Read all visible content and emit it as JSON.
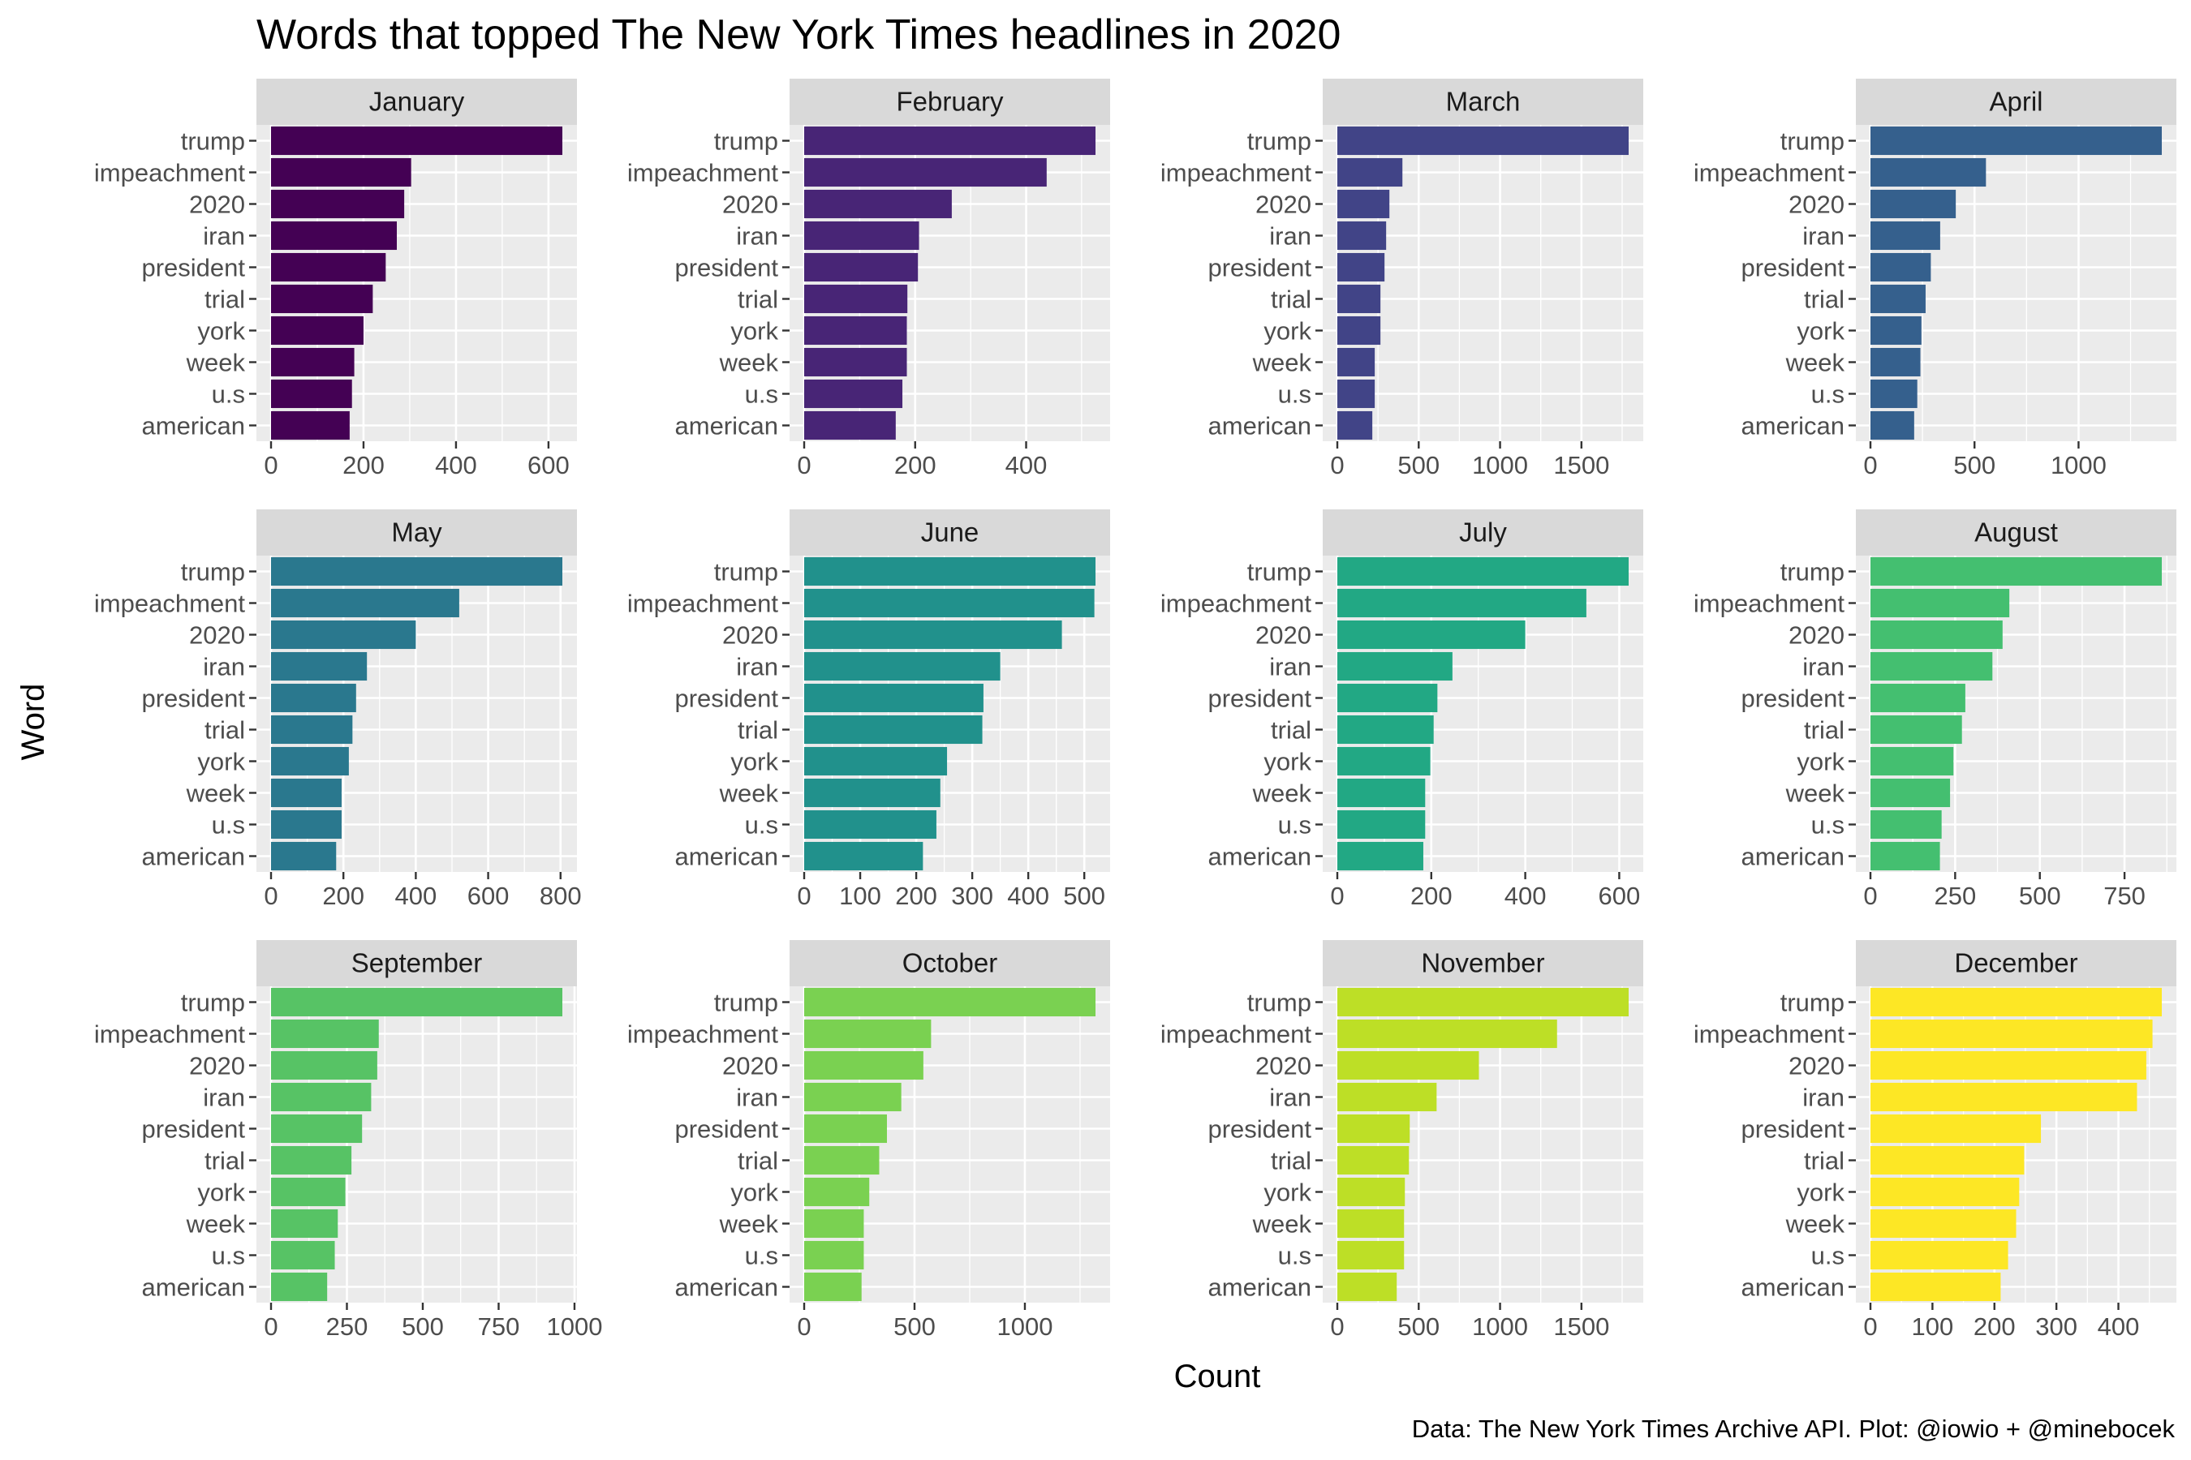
{
  "chart_data": {
    "type": "bar",
    "orientation": "horizontal",
    "title": "Words that topped The New York Times headlines in 2020",
    "xlabel": "Count",
    "ylabel": "Word",
    "caption": "Data: The New York Times Archive API. Plot: @iowio + @minebocek",
    "grid": true,
    "legend": "none",
    "categories": [
      "trump",
      "impeachment",
      "2020",
      "iran",
      "president",
      "trial",
      "york",
      "week",
      "u.s",
      "american"
    ],
    "facets": [
      {
        "name": "January",
        "color": "#440154",
        "xlim": [
          0,
          630
        ],
        "ticks": [
          0,
          200,
          400,
          600
        ],
        "tick_labels": [
          "0",
          "200",
          "400",
          "600"
        ],
        "values": [
          630,
          303,
          288,
          272,
          248,
          220,
          200,
          180,
          175,
          170
        ]
      },
      {
        "name": "February",
        "color": "#482576",
        "xlim": [
          0,
          525
        ],
        "ticks": [
          0,
          200,
          400
        ],
        "tick_labels": [
          "0",
          "200",
          "400"
        ],
        "values": [
          525,
          437,
          266,
          207,
          205,
          186,
          185,
          185,
          177,
          165
        ]
      },
      {
        "name": "March",
        "color": "#414487",
        "xlim": [
          0,
          1790
        ],
        "ticks": [
          0,
          500,
          1000,
          1500
        ],
        "tick_labels": [
          "0",
          "500",
          "1000",
          "1500"
        ],
        "values": [
          1790,
          400,
          320,
          300,
          290,
          265,
          265,
          230,
          230,
          215
        ]
      },
      {
        "name": "April",
        "color": "#35608d",
        "xlim": [
          0,
          1400
        ],
        "ticks": [
          0,
          500,
          1000
        ],
        "tick_labels": [
          "0",
          "500",
          "1000"
        ],
        "values": [
          1400,
          555,
          410,
          335,
          290,
          265,
          245,
          240,
          225,
          210
        ]
      },
      {
        "name": "May",
        "color": "#2a788e",
        "xlim": [
          0,
          805
        ],
        "ticks": [
          0,
          200,
          400,
          600,
          800
        ],
        "tick_labels": [
          "0",
          "200",
          "400",
          "600",
          "800"
        ],
        "values": [
          805,
          520,
          400,
          265,
          235,
          225,
          215,
          195,
          195,
          180
        ]
      },
      {
        "name": "June",
        "color": "#21918c",
        "xlim": [
          0,
          520
        ],
        "ticks": [
          0,
          100,
          200,
          300,
          400,
          500
        ],
        "tick_labels": [
          "0",
          "100",
          "200",
          "300",
          "400",
          "500"
        ],
        "values": [
          520,
          518,
          460,
          350,
          320,
          318,
          255,
          243,
          236,
          212
        ]
      },
      {
        "name": "July",
        "color": "#22a884",
        "xlim": [
          0,
          620
        ],
        "ticks": [
          0,
          200,
          400,
          600
        ],
        "tick_labels": [
          "0",
          "200",
          "400",
          "600"
        ],
        "values": [
          620,
          530,
          400,
          245,
          213,
          205,
          198,
          187,
          187,
          183
        ]
      },
      {
        "name": "August",
        "color": "#44bf70",
        "xlim": [
          0,
          860
        ],
        "ticks": [
          0,
          250,
          500,
          750
        ],
        "tick_labels": [
          "0",
          "250",
          "500",
          "750"
        ],
        "values": [
          860,
          410,
          390,
          360,
          280,
          270,
          245,
          235,
          210,
          205
        ]
      },
      {
        "name": "September",
        "color": "#57c365",
        "xlim": [
          0,
          960
        ],
        "ticks": [
          0,
          250,
          500,
          750,
          1000
        ],
        "tick_labels": [
          "0",
          "250",
          "500",
          "750",
          "1000"
        ],
        "values": [
          960,
          355,
          350,
          330,
          300,
          265,
          245,
          220,
          210,
          185
        ]
      },
      {
        "name": "October",
        "color": "#7ad151",
        "xlim": [
          0,
          1320
        ],
        "ticks": [
          0,
          500,
          1000
        ],
        "tick_labels": [
          "0",
          "500",
          "1000"
        ],
        "values": [
          1320,
          575,
          540,
          440,
          375,
          340,
          295,
          270,
          270,
          260
        ]
      },
      {
        "name": "November",
        "color": "#bddf26",
        "xlim": [
          0,
          1790
        ],
        "ticks": [
          0,
          500,
          1000,
          1500
        ],
        "tick_labels": [
          "0",
          "500",
          "1000",
          "1500"
        ],
        "values": [
          1790,
          1350,
          870,
          610,
          445,
          440,
          415,
          410,
          410,
          365
        ]
      },
      {
        "name": "December",
        "color": "#fde725",
        "xlim": [
          0,
          470
        ],
        "ticks": [
          0,
          100,
          200,
          300,
          400
        ],
        "tick_labels": [
          "0",
          "100",
          "200",
          "300",
          "400"
        ],
        "values": [
          470,
          455,
          445,
          430,
          275,
          248,
          240,
          235,
          222,
          210
        ]
      }
    ]
  }
}
